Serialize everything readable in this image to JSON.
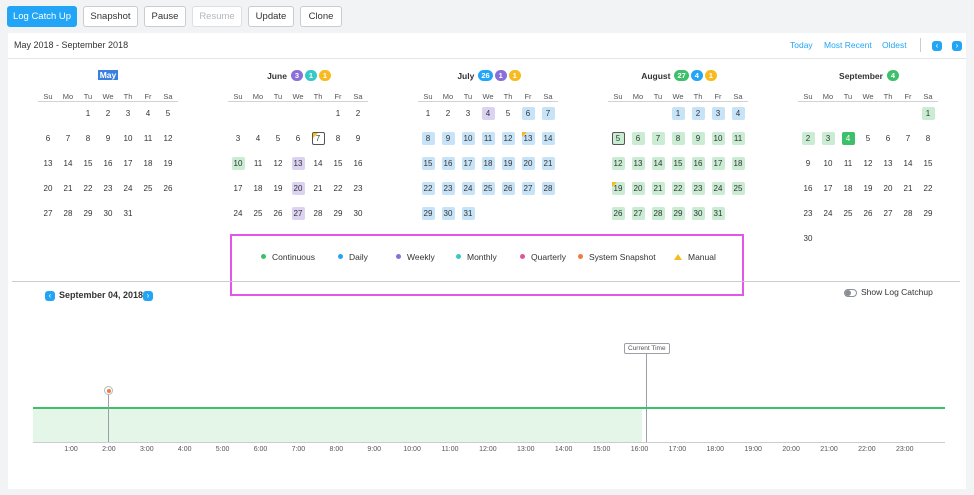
{
  "toolbar": {
    "buttons": [
      {
        "label": "Log Catch Up",
        "style": "primary"
      },
      {
        "label": "Snapshot",
        "style": "default"
      },
      {
        "label": "Pause",
        "style": "default"
      },
      {
        "label": "Resume",
        "style": "disabled"
      },
      {
        "label": "Update",
        "style": "default"
      },
      {
        "label": "Clone",
        "style": "default"
      }
    ]
  },
  "header": {
    "range_title": "May 2018 - September 2018",
    "links": [
      "Today",
      "Most Recent",
      "Oldest"
    ],
    "prev_icon": "chevron-left-icon",
    "next_icon": "chevron-right-icon"
  },
  "weekdays": [
    "Su",
    "Mo",
    "Tu",
    "We",
    "Th",
    "Fr",
    "Sa"
  ],
  "colors": {
    "continuous": "#3ec06a",
    "daily": "#22a5f7",
    "weekly": "#8b6fd8",
    "monthly": "#36c9c6",
    "quarterly": "#e0569e",
    "system_snapshot": "#f07c3b",
    "manual": "#f7bb20"
  },
  "months": [
    {
      "name": "May",
      "first_weekday": 2,
      "days": 31,
      "selected_header": true,
      "badges": [],
      "highlights": {}
    },
    {
      "name": "June",
      "first_weekday": 5,
      "days": 30,
      "selected_header": false,
      "badges": [
        {
          "count": "3",
          "color": "#8b6fd8"
        },
        {
          "count": "1",
          "color": "#36c9c6"
        },
        {
          "count": "1",
          "color": "#f7bb20"
        }
      ],
      "highlights": {
        "7": "today-manual",
        "10": "monthly",
        "13": "weekly",
        "20": "weekly",
        "27": "weekly"
      }
    },
    {
      "name": "July",
      "first_weekday": 0,
      "days": 31,
      "selected_header": false,
      "badges": [
        {
          "count": "26",
          "color": "#22a5f7"
        },
        {
          "count": "1",
          "color": "#8b6fd8"
        },
        {
          "count": "1",
          "color": "#f7bb20"
        }
      ],
      "highlights": {
        "4": "weekly",
        "6": "daily",
        "7": "daily",
        "8": "daily",
        "9": "daily",
        "10": "daily",
        "11": "daily",
        "12": "daily",
        "13": "daily-manual",
        "14": "daily",
        "15": "daily",
        "16": "daily",
        "17": "daily",
        "18": "daily",
        "19": "daily",
        "20": "daily",
        "21": "daily",
        "22": "daily",
        "23": "daily",
        "24": "daily",
        "25": "daily",
        "26": "daily",
        "27": "daily",
        "28": "daily",
        "29": "daily",
        "30": "daily",
        "31": "daily"
      }
    },
    {
      "name": "August",
      "first_weekday": 3,
      "days": 31,
      "selected_header": false,
      "badges": [
        {
          "count": "27",
          "color": "#3ec06a"
        },
        {
          "count": "4",
          "color": "#22a5f7"
        },
        {
          "count": "1",
          "color": "#f7bb20"
        }
      ],
      "highlights": {
        "1": "daily",
        "2": "daily",
        "3": "daily",
        "4": "daily",
        "5": "green-outline",
        "6": "green",
        "7": "green",
        "8": "green",
        "9": "green",
        "10": "green",
        "11": "green",
        "12": "green",
        "13": "green",
        "14": "green",
        "15": "green",
        "16": "green",
        "17": "green",
        "18": "green",
        "19": "green-manual",
        "20": "green",
        "21": "green",
        "22": "green",
        "23": "green",
        "24": "green",
        "25": "green",
        "26": "green",
        "27": "green",
        "28": "green",
        "29": "green",
        "30": "green",
        "31": "green"
      }
    },
    {
      "name": "September",
      "first_weekday": 6,
      "days": 30,
      "selected_header": false,
      "badges": [
        {
          "count": "4",
          "color": "#3ec06a"
        }
      ],
      "highlights": {
        "1": "green",
        "2": "green",
        "3": "green",
        "4": "selected"
      }
    }
  ],
  "legend": [
    {
      "label": "Continuous",
      "color": "#3ec06a",
      "shape": "dot"
    },
    {
      "label": "Daily",
      "color": "#22a5f7",
      "shape": "dot"
    },
    {
      "label": "Weekly",
      "color": "#8b6fd8",
      "shape": "dot"
    },
    {
      "label": "Monthly",
      "color": "#36c9c6",
      "shape": "dot"
    },
    {
      "label": "Quarterly",
      "color": "#e0569e",
      "shape": "dot"
    },
    {
      "label": "System Snapshot",
      "color": "#f07c3b",
      "shape": "dot"
    },
    {
      "label": "Manual",
      "color": "#f7bb20",
      "shape": "triangle"
    }
  ],
  "day_view": {
    "date": "September 04, 2018",
    "toggle_label": "Show Log Catchup",
    "toggle_on": false,
    "current_time_label": "Current Time",
    "hours": [
      "1:00",
      "2:00",
      "3:00",
      "4:00",
      "5:00",
      "6:00",
      "7:00",
      "8:00",
      "9:00",
      "10:00",
      "11:00",
      "12:00",
      "13:00",
      "14:00",
      "15:00",
      "16:00",
      "17:00",
      "18:00",
      "19:00",
      "20:00",
      "21:00",
      "22:00",
      "23:00"
    ]
  }
}
